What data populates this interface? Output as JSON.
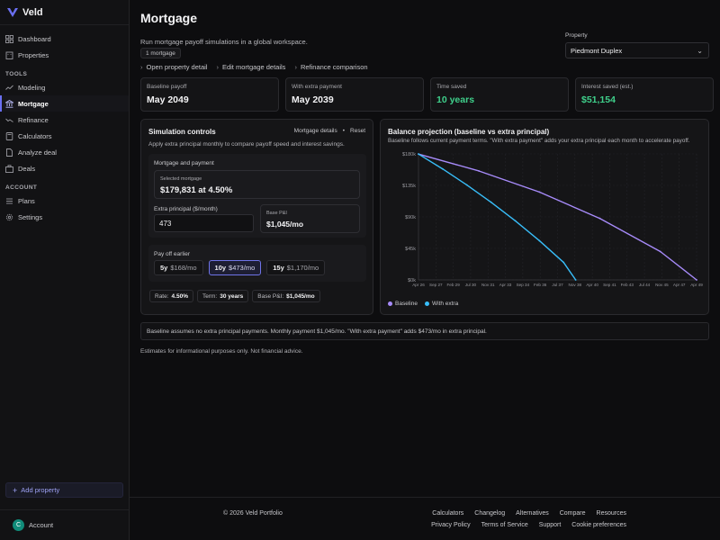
{
  "app": {
    "name": "Veld"
  },
  "sidebar": {
    "items": [
      {
        "label": "Dashboard",
        "icon": "dashboard-icon"
      },
      {
        "label": "Properties",
        "icon": "building-icon"
      }
    ],
    "tools_header": "TOOLS",
    "tools": [
      {
        "label": "Modeling",
        "icon": "trend-icon"
      },
      {
        "label": "Mortgage",
        "icon": "bank-icon",
        "active": true
      },
      {
        "label": "Refinance",
        "icon": "refresh-icon"
      },
      {
        "label": "Calculators",
        "icon": "calculator-icon"
      },
      {
        "label": "Analyze deal",
        "icon": "document-icon"
      },
      {
        "label": "Deals",
        "icon": "briefcase-icon"
      }
    ],
    "account_header": "ACCOUNT",
    "account_items": [
      {
        "label": "Plans",
        "icon": "list-icon"
      },
      {
        "label": "Settings",
        "icon": "gear-icon"
      }
    ],
    "add_property": "Add property",
    "account_label": "Account",
    "avatar_initial": "C"
  },
  "page": {
    "title": "Mortgage",
    "subtitle": "Run mortgage payoff simulations in a global workspace.",
    "badge": "1 mortgage",
    "links": [
      "Open property detail",
      "Edit mortgage details",
      "Refinance comparison"
    ],
    "property_label": "Property",
    "property_value": "Piedmont Duplex"
  },
  "stats": [
    {
      "label": "Baseline payoff",
      "value": "May 2049"
    },
    {
      "label": "With extra payment",
      "value": "May 2039"
    },
    {
      "label": "Time saved",
      "value": "10 years",
      "accent": true
    },
    {
      "label": "Interest saved (est.)",
      "value": "$51,154",
      "accent": true
    }
  ],
  "sim": {
    "title": "Simulation controls",
    "details_link": "Mortgage details",
    "separator": "•",
    "reset": "Reset",
    "description": "Apply extra principal monthly to compare payoff speed and interest savings.",
    "mortgage_section": "Mortgage and payment",
    "selected_label": "Selected mortgage",
    "selected_value": "$179,831 at 4.50%",
    "extra_label": "Extra principal ($/month)",
    "extra_value": "473",
    "base_label": "Base P&I",
    "base_value": "$1,045/mo",
    "payoff_label": "Pay off earlier",
    "options": [
      {
        "term": "5y",
        "amount": "$168/mo"
      },
      {
        "term": "10y",
        "amount": "$473/mo",
        "active": true
      },
      {
        "term": "15y",
        "amount": "$1,170/mo"
      }
    ],
    "chips": [
      {
        "label": "Rate:",
        "value": "4.50%"
      },
      {
        "label": "Term:",
        "value": "30 years"
      },
      {
        "label": "Base P&I:",
        "value": "$1,045/mo"
      }
    ]
  },
  "projection": {
    "title": "Balance projection (baseline vs extra principal)",
    "description": "Baseline follows current payment terms. \"With extra payment\" adds your extra principal each month to accelerate payoff."
  },
  "chart_data": {
    "type": "line",
    "x_tick_labels": [
      "Apr 26",
      "Sep 27",
      "Feb 29",
      "Jul 30",
      "Nov 31",
      "Apr 33",
      "Sep 34",
      "Feb 36",
      "Jul 37",
      "Nov 38",
      "Apr 40",
      "Sep 41",
      "Feb 43",
      "Jul 44",
      "Nov 45",
      "Apr 47",
      "Apr 49"
    ],
    "y_tick_labels": [
      "$0k",
      "$45k",
      "$90k",
      "$135k",
      "$180k"
    ],
    "ylim": [
      0,
      180
    ],
    "x_years": [
      2026.3,
      2049.3
    ],
    "series": [
      {
        "name": "Baseline",
        "color": "#a78bfa",
        "x": [
          2026.3,
          2031.3,
          2036.3,
          2041.3,
          2046.3,
          2049.3
        ],
        "y": [
          179.8,
          155.6,
          125.5,
          87.8,
          40.5,
          0
        ]
      },
      {
        "name": "With extra",
        "color": "#38bdf8",
        "x": [
          2026.3,
          2028.3,
          2030.3,
          2032.3,
          2034.3,
          2036.3,
          2038.3,
          2039.3
        ],
        "y": [
          179.8,
          158.5,
          135.6,
          111.0,
          84.5,
          56.0,
          25.0,
          0
        ]
      }
    ],
    "grid": true,
    "legend": "bottom-left"
  },
  "note": "Baseline assumes no extra principal payments. Monthly payment $1,045/mo. \"With extra payment\" adds $473/mo in extra principal.",
  "disclaimer": "Estimates for informational purposes only. Not financial advice.",
  "footer": {
    "copyright": "© 2026 Veld Portfolio",
    "row1": [
      "Calculators",
      "Changelog",
      "Alternatives",
      "Compare",
      "Resources"
    ],
    "row2": [
      "Privacy Policy",
      "Terms of Service",
      "Support",
      "Cookie preferences"
    ]
  }
}
